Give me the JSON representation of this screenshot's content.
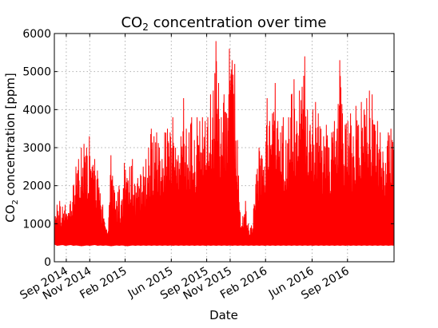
{
  "chart_data": {
    "type": "line",
    "title": "CO₂ concentration over time",
    "title_parts": {
      "base": "CO",
      "sub": "2",
      "rest": " concentration over time"
    },
    "xlabel": "Date",
    "ylabel": "CO₂ concentration [ppm]",
    "ylabel_parts": {
      "base": "CO",
      "sub": "2",
      "rest": " concentration [ppm]"
    },
    "ylim": [
      0,
      6000
    ],
    "xlim": [
      "2014-08-01",
      "2016-12-31"
    ],
    "grid": true,
    "y_ticks": [
      0,
      1000,
      2000,
      3000,
      4000,
      5000,
      6000
    ],
    "x_ticks": [
      {
        "date": "2014-09-01",
        "label": "Sep 2014"
      },
      {
        "date": "2014-11-01",
        "label": "Nov 2014"
      },
      {
        "date": "2015-02-01",
        "label": "Feb 2015"
      },
      {
        "date": "2015-06-01",
        "label": "Jun 2015"
      },
      {
        "date": "2015-09-01",
        "label": "Sep 2015"
      },
      {
        "date": "2015-11-01",
        "label": "Nov 2015"
      },
      {
        "date": "2016-02-01",
        "label": "Feb 2016"
      },
      {
        "date": "2016-06-01",
        "label": "Jun 2016"
      },
      {
        "date": "2016-09-01",
        "label": "Sep 2016"
      }
    ],
    "series": [
      {
        "color": "#ff0000",
        "x": [
          "2014-08-01",
          "2014-08-08",
          "2014-08-15",
          "2014-08-22",
          "2014-08-29",
          "2014-09-05",
          "2014-09-12",
          "2014-09-19",
          "2014-09-26",
          "2014-10-03",
          "2014-10-10",
          "2014-10-17",
          "2014-10-24",
          "2014-10-31",
          "2014-11-07",
          "2014-11-14",
          "2014-11-21",
          "2014-11-28",
          "2014-12-05",
          "2014-12-12",
          "2014-12-19",
          "2014-12-26",
          "2015-01-02",
          "2015-01-09",
          "2015-01-16",
          "2015-01-23",
          "2015-01-30",
          "2015-02-06",
          "2015-02-13",
          "2015-02-20",
          "2015-02-27",
          "2015-03-06",
          "2015-03-13",
          "2015-03-20",
          "2015-03-27",
          "2015-04-03",
          "2015-04-10",
          "2015-04-17",
          "2015-04-24",
          "2015-05-01",
          "2015-05-08",
          "2015-05-15",
          "2015-05-22",
          "2015-05-29",
          "2015-06-05",
          "2015-06-12",
          "2015-06-19",
          "2015-06-26",
          "2015-07-03",
          "2015-07-10",
          "2015-07-17",
          "2015-07-24",
          "2015-07-31",
          "2015-08-07",
          "2015-08-14",
          "2015-08-21",
          "2015-08-28",
          "2015-09-04",
          "2015-09-11",
          "2015-09-18",
          "2015-09-25",
          "2015-10-02",
          "2015-10-09",
          "2015-10-16",
          "2015-10-23",
          "2015-10-30",
          "2015-11-06",
          "2015-11-13",
          "2015-11-20",
          "2015-11-27",
          "2015-12-04",
          "2015-12-11",
          "2015-12-18",
          "2015-12-25",
          "2016-01-01",
          "2016-01-08",
          "2016-01-15",
          "2016-01-22",
          "2016-01-29",
          "2016-02-05",
          "2016-02-12",
          "2016-02-19",
          "2016-02-26",
          "2016-03-04",
          "2016-03-11",
          "2016-03-18",
          "2016-03-25",
          "2016-04-01",
          "2016-04-08",
          "2016-04-15",
          "2016-04-22",
          "2016-04-29",
          "2016-05-06",
          "2016-05-13",
          "2016-05-20",
          "2016-05-27",
          "2016-06-03",
          "2016-06-10",
          "2016-06-17",
          "2016-06-24",
          "2016-07-01",
          "2016-07-08",
          "2016-07-15",
          "2016-07-22",
          "2016-07-29",
          "2016-08-05",
          "2016-08-12",
          "2016-08-19",
          "2016-08-26",
          "2016-09-02",
          "2016-09-09",
          "2016-09-16",
          "2016-09-23",
          "2016-09-30",
          "2016-10-07",
          "2016-10-14",
          "2016-10-21",
          "2016-10-28",
          "2016-11-04",
          "2016-11-11",
          "2016-11-18",
          "2016-11-25",
          "2016-12-02",
          "2016-12-09",
          "2016-12-16",
          "2016-12-23",
          "2016-12-31"
        ],
        "max": [
          1400,
          1500,
          1600,
          1450,
          1500,
          1200,
          1600,
          2000,
          2500,
          2700,
          3000,
          3100,
          3000,
          3300,
          2500,
          2700,
          2400,
          1800,
          1500,
          900,
          800,
          2800,
          2000,
          1600,
          2000,
          1600,
          2600,
          2200,
          2500,
          2700,
          2000,
          2200,
          2300,
          2500,
          2700,
          3000,
          3500,
          3300,
          3400,
          3000,
          2700,
          3400,
          3500,
          3400,
          3800,
          3000,
          2800,
          3300,
          4300,
          3500,
          3400,
          3800,
          3200,
          3800,
          3700,
          3800,
          3700,
          3800,
          4400,
          4500,
          5800,
          4700,
          3800,
          4400,
          3900,
          5600,
          5300,
          5200,
          3200,
          1300,
          1200,
          1600,
          1000,
          900,
          1400,
          2300,
          3000,
          2800,
          2500,
          4300,
          3700,
          3900,
          4700,
          3700,
          3400,
          3800,
          3200,
          3800,
          4400,
          4800,
          3700,
          4500,
          4600,
          5400,
          4000,
          3600,
          4000,
          4200,
          3900,
          3500,
          3300,
          3600,
          3000,
          3400,
          3700,
          3500,
          5300,
          3900,
          3600,
          3700,
          3900,
          3300,
          4100,
          3600,
          4200,
          4000,
          4300,
          4500,
          4400,
          3600,
          3700,
          3400,
          2900,
          2600,
          3400,
          3500,
          3400
        ],
        "min": [
          450,
          420,
          430,
          440,
          420,
          430,
          440,
          420,
          430,
          420,
          410,
          420,
          430,
          420,
          430,
          440,
          420,
          430,
          420,
          430,
          420,
          410,
          420,
          430,
          420,
          430,
          420,
          410,
          420,
          430,
          420,
          430,
          420,
          430,
          420,
          430,
          420,
          430,
          420,
          430,
          420,
          430,
          420,
          430,
          420,
          430,
          420,
          430,
          420,
          430,
          420,
          430,
          420,
          430,
          420,
          430,
          420,
          430,
          420,
          430,
          420,
          430,
          420,
          430,
          420,
          430,
          420,
          430,
          420,
          430,
          420,
          430,
          420,
          430,
          420,
          430,
          420,
          430,
          420,
          430,
          420,
          430,
          420,
          430,
          420,
          430,
          420,
          430,
          420,
          430,
          420,
          430,
          420,
          430,
          420,
          430,
          420,
          430,
          420,
          430,
          420,
          430,
          420,
          430,
          420,
          430,
          420,
          430,
          420,
          430,
          420,
          430,
          420,
          430,
          420,
          430,
          420,
          430,
          420,
          430,
          420,
          430,
          420,
          430,
          420,
          430,
          420
        ]
      }
    ]
  }
}
